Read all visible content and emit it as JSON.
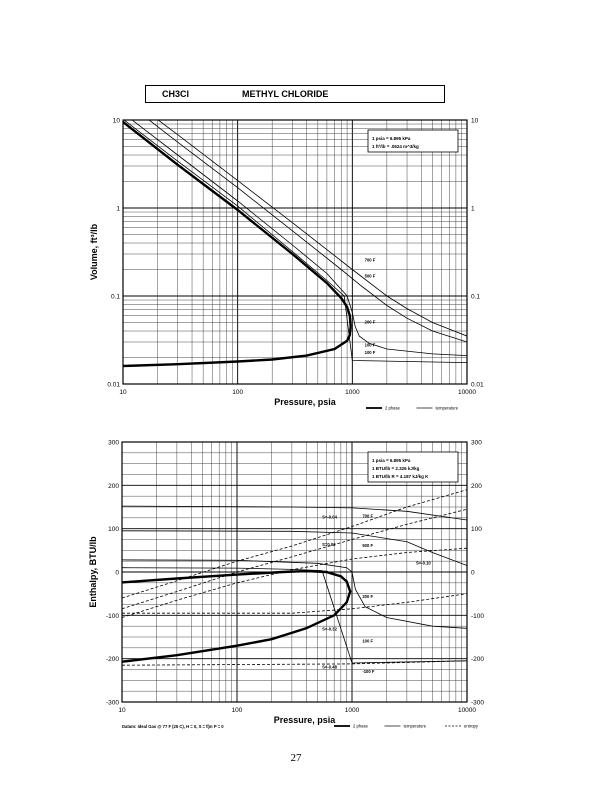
{
  "header": {
    "formula": "CH3Cl",
    "name": "METHYL CHLORIDE"
  },
  "page_number": "27",
  "chart_data": [
    {
      "type": "line",
      "xlabel": "Pressure,  psia",
      "ylabel": "Volume, ft^3/lb",
      "x_scale": "log",
      "y_scale": "log",
      "xlim": [
        10,
        10000
      ],
      "ylim": [
        0.01,
        10
      ],
      "x_ticks": [
        "10",
        "100",
        "1000",
        "10000"
      ],
      "y_ticks": [
        "0.01",
        "0.1",
        "1",
        "10"
      ],
      "grid": true,
      "legend_box": [
        "1 psia  =  6.895 kPa",
        "1 ft^3/lb  =  .0624 m^3/kg"
      ],
      "key": [
        {
          "label": "2 phase",
          "style": "thick"
        },
        {
          "label": "temperature",
          "style": "thin"
        }
      ],
      "series": [
        {
          "name": "2 phase",
          "style": "thick",
          "points": [
            [
              10,
              9.5
            ],
            [
              30,
              3.1
            ],
            [
              100,
              0.95
            ],
            [
              300,
              0.3
            ],
            [
              600,
              0.14
            ],
            [
              800,
              0.095
            ],
            [
              900,
              0.075
            ],
            [
              950,
              0.06
            ],
            [
              967,
              0.045
            ],
            [
              950,
              0.036
            ],
            [
              900,
              0.031
            ],
            [
              700,
              0.025
            ],
            [
              400,
              0.021
            ],
            [
              200,
              0.019
            ],
            [
              100,
              0.018
            ],
            [
              30,
              0.0168
            ],
            [
              10,
              0.016
            ]
          ]
        },
        {
          "name": "100 F",
          "style": "thin",
          "points": [
            [
              10,
              10.2
            ],
            [
              30,
              3.4
            ],
            [
              100,
              1.05
            ],
            [
              300,
              0.32
            ],
            [
              600,
              0.15
            ],
            [
              850,
              0.1
            ],
            [
              1000,
              0.0185
            ],
            [
              2000,
              0.0182
            ],
            [
              10000,
              0.0175
            ]
          ]
        },
        {
          "name": "200 F",
          "style": "thin",
          "points": [
            [
              10,
              12
            ],
            [
              30,
              4
            ],
            [
              100,
              1.2
            ],
            [
              300,
              0.38
            ],
            [
              600,
              0.18
            ],
            [
              900,
              0.1
            ],
            [
              1000,
              0.065
            ],
            [
              1060,
              0.045
            ],
            [
              1150,
              0.035
            ],
            [
              1400,
              0.029
            ],
            [
              2000,
              0.025
            ],
            [
              5000,
              0.022
            ],
            [
              10000,
              0.021
            ]
          ]
        },
        {
          "name": "500 F",
          "style": "thin",
          "points": [
            [
              10,
              17
            ],
            [
              30,
              5.6
            ],
            [
              100,
              1.7
            ],
            [
              300,
              0.55
            ],
            [
              800,
              0.2
            ],
            [
              1200,
              0.13
            ],
            [
              2000,
              0.078
            ],
            [
              3000,
              0.056
            ],
            [
              5000,
              0.04
            ],
            [
              10000,
              0.03
            ]
          ]
        },
        {
          "name": "700 F",
          "style": "thin",
          "points": [
            [
              10,
              20
            ],
            [
              30,
              6.8
            ],
            [
              100,
              2.05
            ],
            [
              300,
              0.68
            ],
            [
              1000,
              0.2
            ],
            [
              2000,
              0.1
            ],
            [
              3000,
              0.072
            ],
            [
              5000,
              0.05
            ],
            [
              10000,
              0.035
            ]
          ]
        }
      ],
      "point_labels": [
        {
          "text": "700 F",
          "x": 1280,
          "y": 0.26
        },
        {
          "text": "500 F",
          "x": 1280,
          "y": 0.17
        },
        {
          "text": "200 F",
          "x": 1280,
          "y": 0.051
        },
        {
          "text": "100 F",
          "x": 1280,
          "y": 0.028
        },
        {
          "text": "100 F",
          "x": 1280,
          "y": 0.023
        }
      ]
    },
    {
      "type": "line",
      "xlabel": "Pressure,  psia",
      "ylabel": "Enthalpy, BTU/lb",
      "x_scale": "log",
      "y_scale": "linear",
      "xlim": [
        10,
        10000
      ],
      "ylim": [
        -300,
        300
      ],
      "x_ticks": [
        "10",
        "100",
        "1000",
        "10000"
      ],
      "y_ticks": [
        "300",
        "200",
        "100",
        "0",
        "-100",
        "-200",
        "-300"
      ],
      "grid": true,
      "legend_box": [
        "1 psia  =  6.895 kPa",
        "1 BTU/lb  =  2.326 kJ/kg",
        "1 BTU/lb R  =  4.187 kJ/kg K"
      ],
      "key": [
        {
          "label": "2 phase",
          "style": "thick"
        },
        {
          "label": "temperature",
          "style": "thin"
        },
        {
          "label": "entropy",
          "style": "dashed"
        }
      ],
      "footnote": "Datum: Ideal Gas @ 77 F (25 C),  H = 0,  S = f(m P = 0",
      "series": [
        {
          "name": "2 phase",
          "style": "thick",
          "points": [
            [
              10,
              -24
            ],
            [
              30,
              -15
            ],
            [
              100,
              -6
            ],
            [
              250,
              0
            ],
            [
              400,
              2
            ],
            [
              600,
              0
            ],
            [
              800,
              -10
            ],
            [
              900,
              -22
            ],
            [
              965,
              -45
            ],
            [
              900,
              -70
            ],
            [
              700,
              -100
            ],
            [
              400,
              -130
            ],
            [
              200,
              -155
            ],
            [
              100,
              -170
            ],
            [
              30,
              -192
            ],
            [
              10,
              -207
            ]
          ]
        },
        {
          "name": "100 F",
          "style": "thin",
          "points": [
            [
              10,
              10
            ],
            [
              100,
              9
            ],
            [
              300,
              6
            ],
            [
              550,
              3
            ],
            [
              1000,
              -210
            ],
            [
              10000,
              -205
            ]
          ]
        },
        {
          "name": "200 F",
          "style": "thin",
          "points": [
            [
              10,
              28
            ],
            [
              100,
              27
            ],
            [
              500,
              20
            ],
            [
              900,
              10
            ],
            [
              1000,
              0
            ],
            [
              1070,
              -40
            ],
            [
              1300,
              -80
            ],
            [
              2000,
              -105
            ],
            [
              5000,
              -125
            ],
            [
              10000,
              -130
            ]
          ]
        },
        {
          "name": "500 F",
          "style": "thin",
          "points": [
            [
              10,
              95
            ],
            [
              300,
              94
            ],
            [
              1000,
              90
            ],
            [
              3000,
              70
            ],
            [
              5000,
              45
            ],
            [
              10000,
              15
            ]
          ]
        },
        {
          "name": "700 F",
          "style": "thin",
          "points": [
            [
              10,
              152
            ],
            [
              300,
              150
            ],
            [
              1000,
              148
            ],
            [
              3000,
              140
            ],
            [
              10000,
              120
            ]
          ]
        },
        {
          "name": "S=-0.04",
          "style": "dashed",
          "points": [
            [
              10,
              -60
            ],
            [
              30,
              -20
            ],
            [
              100,
              25
            ],
            [
              300,
              60
            ],
            [
              1000,
              105
            ],
            [
              3000,
              150
            ],
            [
              10000,
              190
            ]
          ]
        },
        {
          "name": "S=0.02",
          "style": "dashed",
          "points": [
            [
              10,
              -85
            ],
            [
              30,
              -45
            ],
            [
              100,
              0
            ],
            [
              300,
              35
            ],
            [
              1000,
              75
            ],
            [
              3000,
              110
            ],
            [
              10000,
              145
            ]
          ]
        },
        {
          "name": "S=-0.10",
          "style": "dashed",
          "points": [
            [
              10,
              -105
            ],
            [
              30,
              -65
            ],
            [
              100,
              -25
            ],
            [
              300,
              5
            ],
            [
              1000,
              30
            ],
            [
              3000,
              45
            ],
            [
              10000,
              55
            ]
          ]
        },
        {
          "name": "S=-0.32",
          "style": "dashed",
          "points": [
            [
              10,
              -95
            ],
            [
              300,
              -95
            ],
            [
              1000,
              -85
            ],
            [
              3000,
              -70
            ],
            [
              10000,
              -50
            ]
          ]
        },
        {
          "name": "S=-0.48",
          "style": "dashed",
          "points": [
            [
              10,
              -215
            ],
            [
              1000,
              -212
            ],
            [
              10000,
              -205
            ]
          ]
        }
      ],
      "point_labels": [
        {
          "text": "S=-0.04",
          "x": 550,
          "y": 128
        },
        {
          "text": "S=0.02",
          "x": 550,
          "y": 65
        },
        {
          "text": "S=-0.10",
          "x": 3600,
          "y": 22
        },
        {
          "text": "S=-0.32",
          "x": 550,
          "y": -130
        },
        {
          "text": "S=-0.48",
          "x": 550,
          "y": -218
        },
        {
          "text": "700 F",
          "x": 1230,
          "y": 130
        },
        {
          "text": "500 F",
          "x": 1230,
          "y": 62
        },
        {
          "text": "200 F",
          "x": 1230,
          "y": -55
        },
        {
          "text": "100 F",
          "x": 1230,
          "y": -158
        },
        {
          "text": "-100 F",
          "x": 1230,
          "y": -228
        }
      ]
    }
  ]
}
